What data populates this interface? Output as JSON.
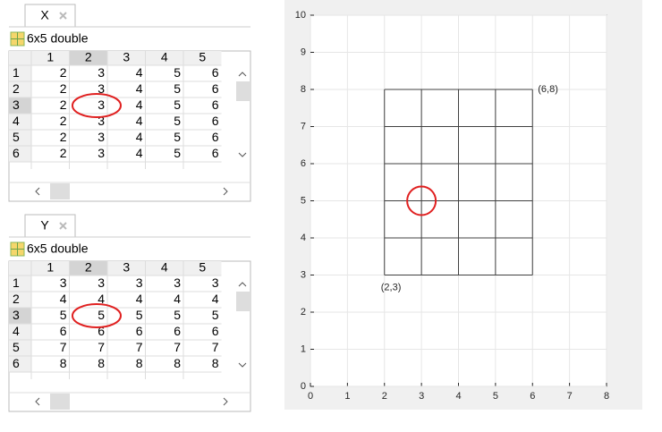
{
  "tables": [
    {
      "name": "X",
      "size": "6x5 double",
      "columns": [
        1,
        2,
        3,
        4,
        5
      ],
      "row_labels": [
        1,
        2,
        3,
        4,
        5,
        6
      ],
      "rows": [
        [
          2,
          3,
          4,
          5,
          6
        ],
        [
          2,
          3,
          4,
          5,
          6
        ],
        [
          2,
          3,
          4,
          5,
          6
        ],
        [
          2,
          3,
          4,
          5,
          6
        ],
        [
          2,
          3,
          4,
          5,
          6
        ],
        [
          2,
          3,
          4,
          5,
          6
        ]
      ]
    },
    {
      "name": "Y",
      "size": "6x5 double",
      "columns": [
        1,
        2,
        3,
        4,
        5
      ],
      "row_labels": [
        1,
        2,
        3,
        4,
        5,
        6
      ],
      "rows": [
        [
          3,
          3,
          3,
          3,
          3
        ],
        [
          4,
          4,
          4,
          4,
          4
        ],
        [
          5,
          5,
          5,
          5,
          5
        ],
        [
          6,
          6,
          6,
          6,
          6
        ],
        [
          7,
          7,
          7,
          7,
          7
        ],
        [
          8,
          8,
          8,
          8,
          8
        ]
      ]
    }
  ],
  "chart_data": {
    "type": "mesh",
    "color": "#404040",
    "grid": true,
    "xlim": [
      0,
      8
    ],
    "ylim": [
      0,
      10
    ],
    "xticks": [
      0,
      1,
      2,
      3,
      4,
      5,
      6,
      7,
      8
    ],
    "yticks": [
      0,
      1,
      2,
      3,
      4,
      5,
      6,
      7,
      8,
      9,
      10
    ],
    "annotations": [
      {
        "text": "(6,8)",
        "x": 6,
        "y": 8
      },
      {
        "text": "(2,3)",
        "x": 2,
        "y": 3
      }
    ],
    "marker": {
      "x": 3,
      "y": 5,
      "color": "#e02020"
    }
  }
}
